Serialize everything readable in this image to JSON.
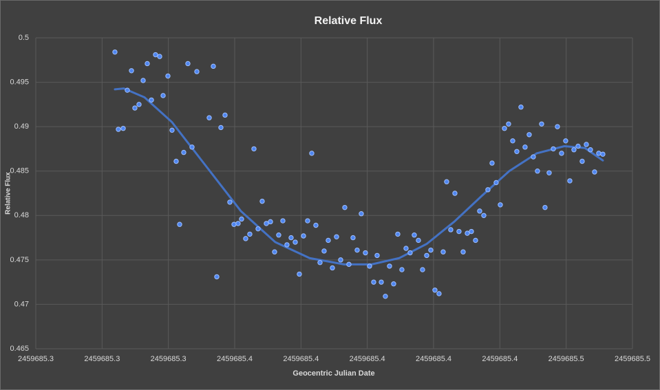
{
  "chart_data": {
    "type": "scatter",
    "title": "Relative Flux",
    "x_label": "Geocentric Julian Date",
    "y_label": "Relative Flux",
    "x": [
      2459685.31387,
      2459685.31491,
      2459685.31637,
      2459685.31761,
      2459685.31886,
      2459685.31989,
      2459685.32114,
      2459685.32239,
      2459685.32363,
      2459685.32488,
      2459685.32612,
      2459685.32737,
      2459685.32841,
      2459685.32986,
      2459685.3311,
      2459685.33235,
      2459685.33339,
      2459685.33463,
      2459685.33588,
      2459685.33713,
      2459685.33858,
      2459685.34232,
      2459685.34356,
      2459685.3446,
      2459685.34584,
      2459685.34709,
      2459685.34854,
      2459685.34979,
      2459685.35103,
      2459685.35207,
      2459685.35332,
      2459685.35456,
      2459685.35581,
      2459685.35705,
      2459685.3583,
      2459685.35955,
      2459685.36079,
      2459685.36204,
      2459685.36328,
      2459685.36453,
      2459685.36577,
      2459685.36702,
      2459685.36827,
      2459685.36951,
      2459685.37076,
      2459685.372,
      2459685.37325,
      2459685.37449,
      2459685.37574,
      2459685.37698,
      2459685.37823,
      2459685.37948,
      2459685.38072,
      2459685.38197,
      2459685.38321,
      2459685.38446,
      2459685.3857,
      2459685.38695,
      2459685.38819,
      2459685.38944,
      2459685.39069,
      2459685.39193,
      2459685.39297,
      2459685.39422,
      2459685.39546,
      2459685.39671,
      2459685.39795,
      2459685.3992,
      2459685.40044,
      2459685.40169,
      2459685.40293,
      2459685.40418,
      2459685.40543,
      2459685.40667,
      2459685.40792,
      2459685.40916,
      2459685.41041,
      2459685.41165,
      2459685.4129,
      2459685.41394,
      2459685.41518,
      2459685.41643,
      2459685.41767,
      2459685.41892,
      2459685.42017,
      2459685.42141,
      2459685.42266,
      2459685.4239,
      2459685.42515,
      2459685.42639,
      2459685.42764,
      2459685.42888,
      2459685.43013,
      2459685.43138,
      2459685.43262,
      2459685.43387,
      2459685.43511,
      2459685.43636,
      2459685.4376,
      2459685.43885,
      2459685.44009,
      2459685.44134,
      2459685.44259,
      2459685.44362,
      2459685.44487,
      2459685.44612,
      2459685.44736,
      2459685.44861,
      2459685.44985,
      2459685.4511,
      2459685.45234,
      2459685.45359,
      2459685.45483,
      2459685.45608,
      2459685.45732,
      2459685.45857,
      2459685.45982,
      2459685.46106
    ],
    "series": [
      {
        "color": "#4f86f0",
        "values": [
          0.4984,
          0.4897,
          0.4898,
          0.4941,
          0.4963,
          0.4921,
          0.4925,
          0.4952,
          0.4971,
          0.493,
          0.4981,
          0.4979,
          0.4935,
          0.4957,
          0.4896,
          0.4861,
          0.479,
          0.4871,
          0.4971,
          0.4877,
          0.4962,
          0.491,
          0.4968,
          0.4731,
          0.4899,
          0.4913,
          0.4815,
          0.479,
          0.4791,
          0.4796,
          0.4774,
          0.4779,
          0.4875,
          0.4785,
          0.4816,
          0.4791,
          0.4793,
          0.4759,
          0.4778,
          0.4794,
          0.4767,
          0.4775,
          0.477,
          0.4734,
          0.4777,
          0.4794,
          0.487,
          0.4789,
          0.4747,
          0.476,
          0.4772,
          0.4741,
          0.4776,
          0.475,
          0.4809,
          0.4745,
          0.4775,
          0.4761,
          0.4802,
          0.4758,
          0.4743,
          0.4725,
          0.4755,
          0.4725,
          0.4709,
          0.4743,
          0.4723,
          0.4779,
          0.4739,
          0.4763,
          0.4758,
          0.4778,
          0.4772,
          0.4739,
          0.4755,
          0.4761,
          0.4716,
          0.4712,
          0.4759,
          0.4838,
          0.4784,
          0.4825,
          0.4782,
          0.4759,
          0.478,
          0.4782,
          0.4772,
          0.4805,
          0.48,
          0.4829,
          0.4859,
          0.4837,
          0.4812,
          0.4898,
          0.4903,
          0.4884,
          0.4872,
          0.4922,
          0.4877,
          0.4891,
          0.4866,
          0.485,
          0.4903,
          0.4809,
          0.4848,
          0.4875,
          0.49,
          0.487,
          0.4884,
          0.4839,
          0.4874,
          0.4878,
          0.4861,
          0.488,
          0.4874,
          0.4849,
          0.487,
          0.4869
        ]
      }
    ],
    "trendline": {
      "color": "#4472c4",
      "x": [
        2459685.31387,
        2459685.31657,
        2459685.3228,
        2459685.3311,
        2459685.34148,
        2459685.35186,
        2459685.36224,
        2459685.37262,
        2459685.383,
        2459685.39131,
        2459685.39961,
        2459685.40792,
        2459685.41622,
        2459685.42452,
        2459685.43283,
        2459685.44113,
        2459685.44944,
        2459685.45566,
        2459685.46106
      ],
      "values": [
        0.4942,
        0.4943,
        0.4933,
        0.4905,
        0.4855,
        0.4805,
        0.477,
        0.4752,
        0.4745,
        0.4745,
        0.4752,
        0.4768,
        0.4793,
        0.4822,
        0.485,
        0.487,
        0.4878,
        0.4876,
        0.4862
      ]
    },
    "xlim": [
      2459685.29,
      2459685.47
    ],
    "xticks": [
      {
        "value": 2459685.29,
        "label": "2459685.3"
      },
      {
        "value": 2459685.31,
        "label": "2459685.3"
      },
      {
        "value": 2459685.33,
        "label": "2459685.3"
      },
      {
        "value": 2459685.35,
        "label": "2459685.4"
      },
      {
        "value": 2459685.37,
        "label": "2459685.4"
      },
      {
        "value": 2459685.39,
        "label": "2459685.4"
      },
      {
        "value": 2459685.41,
        "label": "2459685.4"
      },
      {
        "value": 2459685.43,
        "label": "2459685.4"
      },
      {
        "value": 2459685.45,
        "label": "2459685.5"
      },
      {
        "value": 2459685.47,
        "label": "2459685.5"
      }
    ],
    "ylim": [
      0.465,
      0.5
    ],
    "yticks": [
      0.465,
      0.47,
      0.475,
      0.48,
      0.485,
      0.49,
      0.495,
      0.5
    ],
    "grid": true
  }
}
